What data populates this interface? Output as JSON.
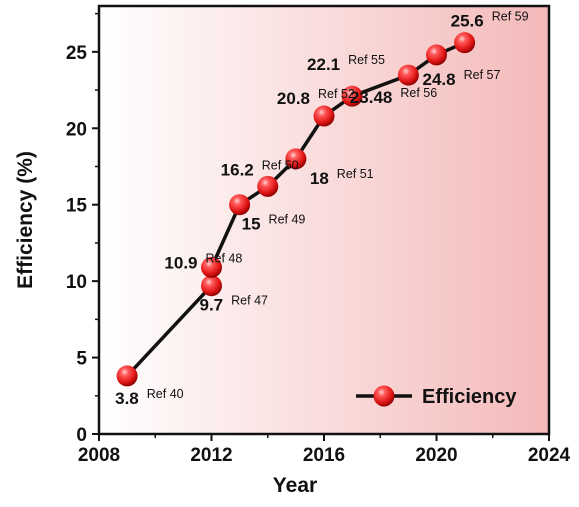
{
  "chart_data": {
    "type": "line",
    "xlabel": "Year",
    "ylabel": "Efficiency (%)",
    "xlim": [
      2008,
      2024
    ],
    "ylim": [
      0,
      28
    ],
    "xticks": [
      "2008",
      "2012",
      "2016",
      "2020",
      "2024"
    ],
    "yticks": [
      "0",
      "5",
      "10",
      "15",
      "20",
      "25"
    ],
    "legend": {
      "position": "bottom-right"
    },
    "background_gradient": [
      "#ffffff",
      "#f4b9b9"
    ],
    "series": [
      {
        "name": "Efficiency",
        "color": "#e02020",
        "points": [
          {
            "x": 2009,
            "y": 3.8,
            "label": "3.8",
            "ref": "Ref 40"
          },
          {
            "x": 2012,
            "y": 9.7,
            "label": "9.7",
            "ref": "Ref 47"
          },
          {
            "x": 2012,
            "y": 10.9,
            "label": "10.9",
            "ref": "Ref 48"
          },
          {
            "x": 2013,
            "y": 15,
            "label": "15",
            "ref": "Ref 49"
          },
          {
            "x": 2014,
            "y": 16.2,
            "label": "16.2",
            "ref": "Ref 50"
          },
          {
            "x": 2015,
            "y": 18,
            "label": "18",
            "ref": "Ref 51"
          },
          {
            "x": 2016,
            "y": 20.8,
            "label": "20.8",
            "ref": "Ref 52"
          },
          {
            "x": 2017,
            "y": 22.1,
            "label": "22.1",
            "ref": "Ref 55"
          },
          {
            "x": 2019,
            "y": 23.48,
            "label": "23.48",
            "ref": "Ref 56"
          },
          {
            "x": 2020,
            "y": 24.8,
            "label": "24.8",
            "ref": "Ref 57"
          },
          {
            "x": 2021,
            "y": 25.6,
            "label": "25.6",
            "ref": "Ref 59"
          }
        ]
      }
    ]
  }
}
